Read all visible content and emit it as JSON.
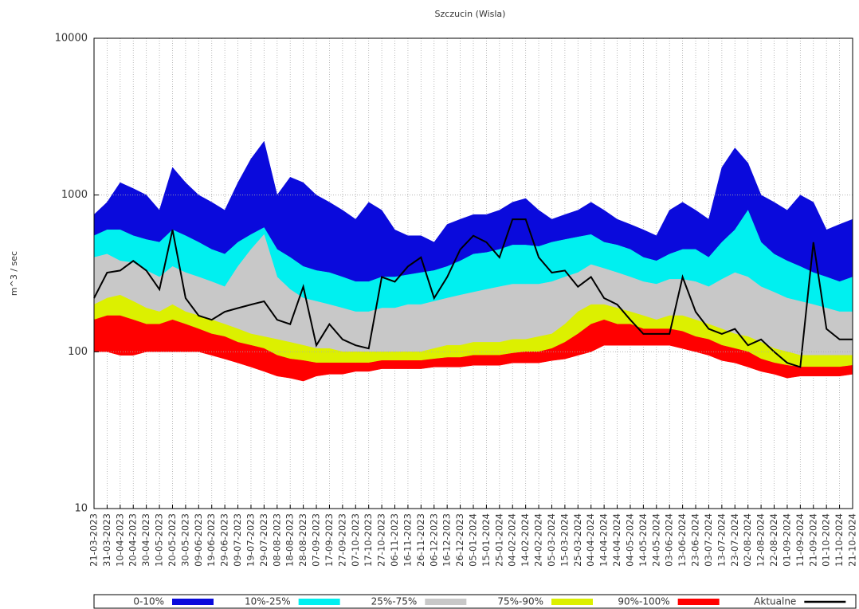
{
  "chart_data": {
    "type": "band",
    "title": "Szczucin (Wisla)",
    "y_label": "m^3 / sec",
    "log_y": true,
    "grid": true,
    "legend": "bottom",
    "ylim": [
      10,
      10000
    ],
    "yticks": [
      10,
      100,
      1000,
      10000
    ],
    "x": [
      "21-03-2023",
      "31-03-2023",
      "10-04-2023",
      "20-04-2023",
      "30-04-2023",
      "10-05-2023",
      "20-05-2023",
      "30-05-2023",
      "09-06-2023",
      "19-06-2023",
      "29-06-2023",
      "09-07-2023",
      "19-07-2023",
      "29-07-2023",
      "08-08-2023",
      "18-08-2023",
      "28-08-2023",
      "07-09-2023",
      "17-09-2023",
      "27-09-2023",
      "07-10-2023",
      "17-10-2023",
      "27-10-2023",
      "06-11-2023",
      "16-11-2023",
      "26-11-2023",
      "06-12-2023",
      "16-12-2023",
      "26-12-2023",
      "05-01-2024",
      "15-01-2024",
      "25-01-2024",
      "04-02-2024",
      "14-02-2024",
      "24-02-2024",
      "05-03-2024",
      "15-03-2024",
      "25-03-2024",
      "04-04-2024",
      "14-04-2024",
      "24-04-2024",
      "04-05-2024",
      "14-05-2024",
      "24-05-2024",
      "03-06-2024",
      "13-06-2024",
      "23-06-2024",
      "03-07-2024",
      "13-07-2024",
      "23-07-2024",
      "02-08-2024",
      "12-08-2024",
      "22-08-2024",
      "01-09-2024",
      "11-09-2024",
      "21-09-2024",
      "01-10-2024",
      "11-10-2024",
      "21-10-2024"
    ],
    "series": [
      {
        "name": "0-10%",
        "color": "#0a0adc",
        "high": [
          750,
          900,
          1200,
          1100,
          1000,
          800,
          1500,
          1200,
          1000,
          900,
          800,
          1200,
          1700,
          2200,
          1000,
          1300,
          1200,
          1000,
          900,
          800,
          700,
          900,
          800,
          600,
          550,
          550,
          500,
          650,
          700,
          750,
          750,
          800,
          900,
          950,
          800,
          700,
          750,
          800,
          900,
          800,
          700,
          650,
          600,
          550,
          800,
          900,
          800,
          700,
          1500,
          2000,
          1600,
          1000,
          900,
          800,
          1000,
          900,
          600,
          650,
          700
        ],
        "low": [
          550,
          600,
          600,
          550,
          520,
          500,
          600,
          550,
          500,
          450,
          420,
          500,
          560,
          620,
          450,
          400,
          350,
          330,
          320,
          300,
          280,
          280,
          300,
          300,
          310,
          320,
          330,
          350,
          380,
          420,
          430,
          450,
          480,
          480,
          470,
          500,
          520,
          540,
          560,
          500,
          480,
          450,
          400,
          380,
          420,
          450,
          450,
          400,
          500,
          600,
          800,
          500,
          420,
          380,
          350,
          320,
          300,
          280,
          300
        ]
      },
      {
        "name": "10%-25%",
        "color": "#00f0f0",
        "high": [
          550,
          600,
          600,
          550,
          520,
          500,
          600,
          550,
          500,
          450,
          420,
          500,
          560,
          620,
          450,
          400,
          350,
          330,
          320,
          300,
          280,
          280,
          300,
          300,
          310,
          320,
          330,
          350,
          380,
          420,
          430,
          450,
          480,
          480,
          470,
          500,
          520,
          540,
          560,
          500,
          480,
          450,
          400,
          380,
          420,
          450,
          450,
          400,
          500,
          600,
          800,
          500,
          420,
          380,
          350,
          320,
          300,
          280,
          300
        ],
        "low": [
          400,
          420,
          380,
          370,
          330,
          300,
          350,
          320,
          300,
          280,
          260,
          350,
          450,
          560,
          300,
          250,
          220,
          210,
          200,
          190,
          180,
          180,
          190,
          190,
          200,
          200,
          210,
          220,
          230,
          240,
          250,
          260,
          270,
          270,
          270,
          280,
          300,
          320,
          360,
          340,
          320,
          300,
          280,
          270,
          290,
          290,
          280,
          260,
          290,
          320,
          300,
          260,
          240,
          220,
          210,
          200,
          190,
          180,
          180
        ]
      },
      {
        "name": "25%-75%",
        "color": "#c8c8c8",
        "high": [
          400,
          420,
          380,
          370,
          330,
          300,
          350,
          320,
          300,
          280,
          260,
          350,
          450,
          560,
          300,
          250,
          220,
          210,
          200,
          190,
          180,
          180,
          190,
          190,
          200,
          200,
          210,
          220,
          230,
          240,
          250,
          260,
          270,
          270,
          270,
          280,
          300,
          320,
          360,
          340,
          320,
          300,
          280,
          270,
          290,
          290,
          280,
          260,
          290,
          320,
          300,
          260,
          240,
          220,
          210,
          200,
          190,
          180,
          180
        ],
        "low": [
          200,
          220,
          230,
          210,
          190,
          180,
          200,
          180,
          170,
          160,
          150,
          140,
          130,
          125,
          120,
          115,
          110,
          105,
          105,
          100,
          100,
          100,
          100,
          100,
          100,
          100,
          105,
          110,
          110,
          115,
          115,
          115,
          120,
          120,
          125,
          130,
          150,
          180,
          200,
          200,
          190,
          180,
          170,
          160,
          170,
          170,
          160,
          150,
          140,
          130,
          125,
          115,
          105,
          100,
          95,
          95,
          95,
          95,
          95
        ]
      },
      {
        "name": "75%-90%",
        "color": "#dcf000",
        "high": [
          200,
          220,
          230,
          210,
          190,
          180,
          200,
          180,
          170,
          160,
          150,
          140,
          130,
          125,
          120,
          115,
          110,
          105,
          105,
          100,
          100,
          100,
          100,
          100,
          100,
          100,
          105,
          110,
          110,
          115,
          115,
          115,
          120,
          120,
          125,
          130,
          150,
          180,
          200,
          200,
          190,
          180,
          170,
          160,
          170,
          170,
          160,
          150,
          140,
          130,
          125,
          115,
          105,
          100,
          95,
          95,
          95,
          95,
          95
        ],
        "low": [
          160,
          170,
          170,
          160,
          150,
          150,
          160,
          150,
          140,
          130,
          125,
          115,
          110,
          105,
          95,
          90,
          88,
          85,
          85,
          85,
          85,
          85,
          88,
          88,
          88,
          88,
          90,
          92,
          92,
          95,
          95,
          95,
          98,
          100,
          100,
          105,
          115,
          130,
          150,
          160,
          150,
          150,
          140,
          140,
          140,
          135,
          125,
          120,
          110,
          105,
          100,
          90,
          85,
          82,
          80,
          80,
          80,
          80,
          82
        ]
      },
      {
        "name": "90%-100%",
        "color": "#ff0000",
        "high": [
          160,
          170,
          170,
          160,
          150,
          150,
          160,
          150,
          140,
          130,
          125,
          115,
          110,
          105,
          95,
          90,
          88,
          85,
          85,
          85,
          85,
          85,
          88,
          88,
          88,
          88,
          90,
          92,
          92,
          95,
          95,
          95,
          98,
          100,
          100,
          105,
          115,
          130,
          150,
          160,
          150,
          150,
          140,
          140,
          140,
          135,
          125,
          120,
          110,
          105,
          100,
          90,
          85,
          82,
          80,
          80,
          80,
          80,
          82
        ],
        "low": [
          100,
          100,
          95,
          95,
          100,
          100,
          100,
          100,
          100,
          95,
          90,
          85,
          80,
          75,
          70,
          68,
          65,
          70,
          72,
          72,
          75,
          75,
          78,
          78,
          78,
          78,
          80,
          80,
          80,
          82,
          82,
          82,
          85,
          85,
          85,
          88,
          90,
          95,
          100,
          110,
          110,
          110,
          110,
          110,
          110,
          105,
          100,
          95,
          88,
          85,
          80,
          75,
          72,
          68,
          70,
          70,
          70,
          70,
          72
        ]
      },
      {
        "name": "Aktualne",
        "color": "#000000",
        "line": true,
        "values": [
          220,
          320,
          330,
          380,
          330,
          250,
          600,
          220,
          170,
          160,
          180,
          190,
          200,
          210,
          160,
          150,
          260,
          110,
          150,
          120,
          110,
          105,
          300,
          280,
          350,
          400,
          220,
          300,
          450,
          550,
          500,
          400,
          700,
          700,
          400,
          320,
          330,
          260,
          300,
          220,
          200,
          160,
          130,
          130,
          130,
          300,
          180,
          140,
          130,
          140,
          110,
          120,
          100,
          85,
          80,
          500,
          140,
          120,
          120
        ]
      }
    ]
  }
}
